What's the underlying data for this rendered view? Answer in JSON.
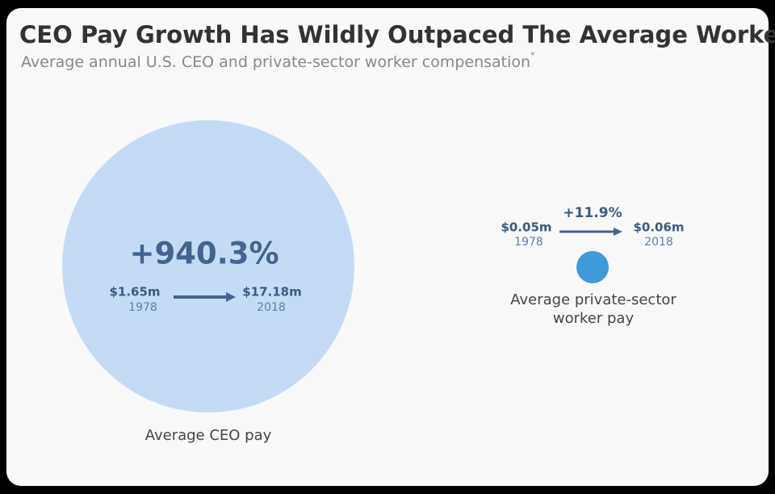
{
  "header": {
    "title": "CEO Pay Growth Has Wildly Outpaced The Average Worker",
    "subtitle": "Average annual U.S. CEO and private-sector worker compensation",
    "footnote_marker": "*"
  },
  "groups": [
    {
      "label": [
        "Average CEO pay"
      ],
      "change": "+940.3%",
      "from": {
        "value": "$1.65m",
        "year": "1978"
      },
      "to": {
        "value": "$17.18m",
        "year": "2018"
      }
    },
    {
      "label": [
        "Average private-sector",
        "worker pay"
      ],
      "change": "+11.9%",
      "from": {
        "value": "$0.05m",
        "year": "1978"
      },
      "to": {
        "value": "$0.06m",
        "year": "2018"
      }
    }
  ]
}
